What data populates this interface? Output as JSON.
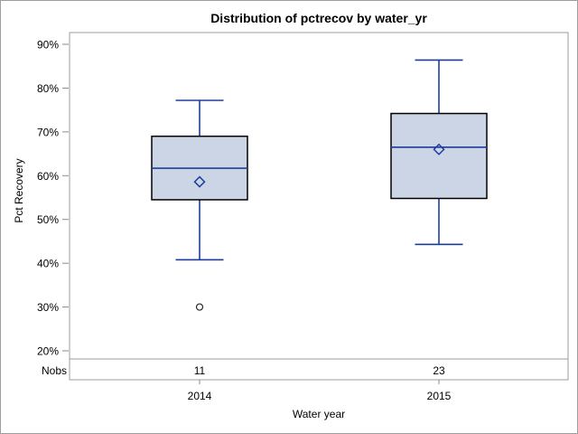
{
  "figure": {
    "background": "#ffffff",
    "border_color": "#9d9d9d"
  },
  "chart_data": {
    "type": "boxplot",
    "title": "Distribution of pctrecov by water_yr",
    "xlabel": "Water year",
    "ylabel": "Pct Recovery",
    "nobs_label": "Nobs",
    "grid": false,
    "legend": "none",
    "ylim": [
      20,
      90
    ],
    "y_tick_values": [
      90,
      80,
      70,
      60,
      50,
      40,
      30,
      20
    ],
    "y_tick_labels": [
      "90%",
      "80%",
      "70%",
      "60%",
      "50%",
      "40%",
      "30%",
      "20%"
    ],
    "categories": [
      "2014",
      "2015"
    ],
    "series": [
      {
        "category": "2014",
        "nobs": "11",
        "whisker_low": 40.8,
        "q1": 54.5,
        "median": 61.7,
        "mean": 58.6,
        "q3": 69.0,
        "whisker_high": 77.2,
        "outliers": [
          30
        ]
      },
      {
        "category": "2015",
        "nobs": "23",
        "whisker_low": 44.3,
        "q1": 54.8,
        "median": 66.5,
        "mean": 66.0,
        "q3": 74.2,
        "whisker_high": 86.4,
        "outliers": []
      }
    ],
    "colors": {
      "box_fill": "#ccd5e5",
      "box_border": "#000000",
      "whisker": "#1d3e9e",
      "median": "#1d3e9e",
      "mean_marker": "#1d3e9e",
      "outlier": "#2a2a2a",
      "axis": "#9d9d9d",
      "tick": "#8a8a8a",
      "text": "#000000"
    }
  }
}
